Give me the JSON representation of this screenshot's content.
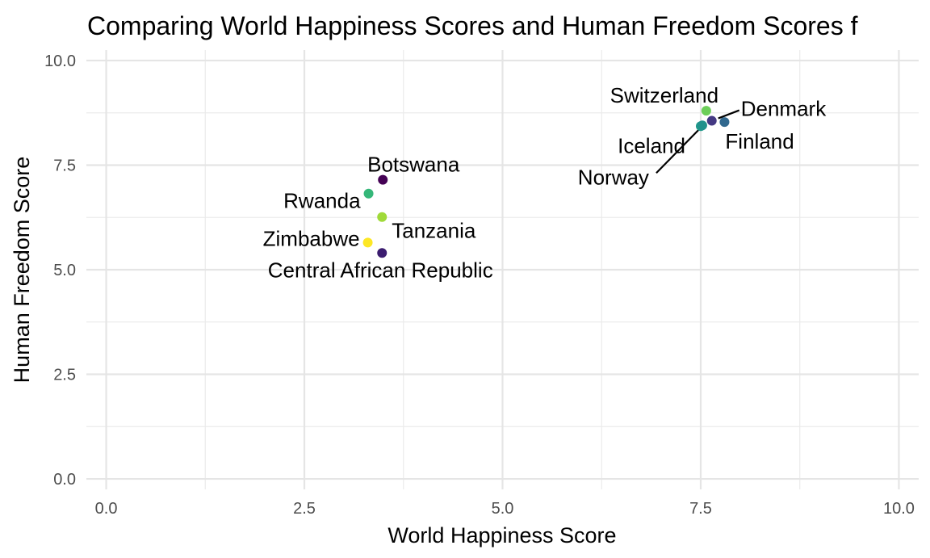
{
  "chart_data": {
    "type": "scatter",
    "title": "Comparing World Happiness Scores and Human Freedom Scores f",
    "xlabel": "World Happiness Score",
    "ylabel": "Human Freedom Score",
    "xlim": [
      -0.25,
      10.25
    ],
    "ylim": [
      -0.25,
      10.25
    ],
    "xticks": [
      0.0,
      2.5,
      5.0,
      7.5,
      10.0
    ],
    "yticks": [
      0.0,
      2.5,
      5.0,
      7.5,
      10.0
    ],
    "xtick_labels": [
      "0.0",
      "2.5",
      "5.0",
      "7.5",
      "10.0"
    ],
    "ytick_labels": [
      "0.0",
      "2.5",
      "5.0",
      "7.5",
      "10.0"
    ],
    "grid": true,
    "legend": "none",
    "points": [
      {
        "label": "Botswana",
        "x": 3.49,
        "y": 7.15,
        "color": "#440154"
      },
      {
        "label": "Rwanda",
        "x": 3.31,
        "y": 6.82,
        "color": "#35b779"
      },
      {
        "label": "Tanzania",
        "x": 3.48,
        "y": 6.26,
        "color": "#a0da39"
      },
      {
        "label": "Zimbabwe",
        "x": 3.3,
        "y": 5.65,
        "color": "#fde725"
      },
      {
        "label": "Central African Republic",
        "x": 3.48,
        "y": 5.4,
        "color": "#3b1c6f"
      },
      {
        "label": "Switzerland",
        "x": 7.57,
        "y": 8.8,
        "color": "#6cce59"
      },
      {
        "label": "Denmark",
        "x": 7.64,
        "y": 8.56,
        "color": "#443983"
      },
      {
        "label": "Finland",
        "x": 7.8,
        "y": 8.53,
        "color": "#31688e"
      },
      {
        "label": "Iceland",
        "x": 7.5,
        "y": 8.43,
        "color": "#1f9a8a"
      },
      {
        "label": "Norway",
        "x": 7.52,
        "y": 8.45,
        "color": "#21918c"
      }
    ]
  }
}
